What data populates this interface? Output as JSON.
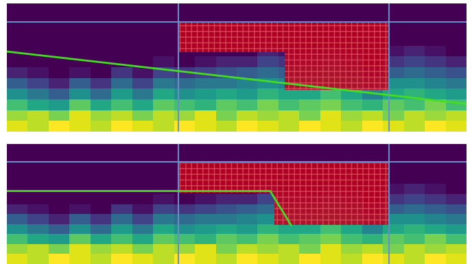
{
  "chart_data": [
    {
      "type": "heatmap",
      "tick_labels": false,
      "xlim": [
        0,
        22
      ],
      "ylim": [
        0,
        12
      ],
      "xticks": [],
      "yticks": [],
      "color_range": [
        0,
        1
      ],
      "cells": [
        [
          0.95,
          0.9,
          1,
          0.95,
          0.9,
          1,
          0.95,
          0.9,
          1,
          0.95,
          0.9,
          1,
          0.95,
          0.9,
          1,
          0.95,
          0.9,
          1,
          0.95,
          0.9,
          1,
          0.95
        ],
        [
          0.85,
          0.9,
          0.8,
          0.95,
          0.85,
          0.9,
          0.8,
          0.9,
          0.85,
          0.95,
          0.8,
          0.9,
          0.85,
          0.9,
          0.8,
          0.95,
          0.85,
          0.9,
          0.8,
          0.9,
          0.85,
          0.9
        ],
        [
          0.7,
          0.6,
          0.55,
          0.75,
          0.6,
          0.7,
          0.6,
          0.75,
          0.7,
          0.65,
          0.75,
          0.7,
          0.8,
          0.7,
          0.75,
          0.8,
          0.7,
          0.65,
          0.75,
          0.7,
          0.8,
          0.7
        ],
        [
          0.5,
          0.4,
          0.3,
          0.5,
          0.35,
          0.55,
          0.4,
          0.6,
          0.5,
          0.55,
          0.6,
          0.55,
          0.65,
          0.6,
          0.6,
          0.7,
          0.6,
          0.45,
          0.6,
          0.65,
          0.6,
          0.55
        ],
        [
          0.3,
          0.2,
          0.1,
          0.3,
          0.15,
          0.35,
          0.2,
          0.4,
          0.35,
          0.4,
          0.4,
          0.45,
          0.5,
          0.45,
          0.45,
          0.55,
          0.45,
          0.3,
          0.5,
          0.5,
          0.45,
          0.4
        ],
        [
          0.1,
          0.05,
          0,
          0.05,
          0,
          0.15,
          0.05,
          0.2,
          0.15,
          0.2,
          0.25,
          0.3,
          0.35,
          0.3,
          0.3,
          0.4,
          0.3,
          0.1,
          0.3,
          0.35,
          0.3,
          0.25
        ],
        [
          0,
          0,
          0,
          0,
          0,
          0,
          0,
          0.05,
          0,
          0.05,
          0.1,
          0.1,
          0.2,
          0.15,
          0.15,
          0.25,
          0.15,
          0,
          0.15,
          0.2,
          0.15,
          0.1
        ],
        [
          0,
          0,
          0,
          0,
          0,
          0,
          0,
          0,
          0,
          0,
          0,
          0,
          0.1,
          0.05,
          0.05,
          0.1,
          0.05,
          0,
          0.05,
          0.1,
          0.05,
          0
        ],
        [
          0,
          0,
          0,
          0,
          0,
          0,
          0,
          0,
          0,
          0,
          0,
          0,
          0,
          0,
          0,
          0,
          0,
          0,
          0,
          0,
          0,
          0
        ],
        [
          0,
          0,
          0,
          0,
          0,
          0,
          0,
          0,
          0,
          0,
          0,
          0,
          0,
          0,
          0,
          0,
          0,
          0,
          0,
          0,
          0,
          0
        ],
        [
          0,
          0,
          0,
          0,
          0,
          0,
          0,
          0,
          0,
          0,
          0,
          0,
          0,
          0,
          0,
          0,
          0,
          0,
          0,
          0,
          0,
          0
        ],
        [
          0,
          0,
          0,
          0,
          0,
          0,
          0,
          0,
          0,
          0,
          0,
          0,
          0,
          0,
          0,
          0,
          0,
          0,
          0,
          0,
          0,
          0
        ]
      ],
      "vlines": [
        8.2,
        18.3
      ],
      "hlines": [
        10.25
      ],
      "lines_color": "#6a8cc7",
      "regions": [
        {
          "x": [
            8.2,
            13.3
          ],
          "y": [
            7.45,
            10.25
          ]
        },
        {
          "x": [
            13.3,
            18.3
          ],
          "y": [
            3.9,
            10.25
          ]
        }
      ],
      "regions_color": "#c0001a",
      "series": [
        {
          "x": [
            0,
            22
          ],
          "values": [
            7.5,
            2.6
          ],
          "color": "#44dd22"
        }
      ]
    },
    {
      "type": "heatmap",
      "tick_labels": false,
      "xlim": [
        0,
        22
      ],
      "ylim": [
        0,
        12
      ],
      "xticks": [],
      "yticks": [],
      "color_range": [
        0,
        1
      ],
      "cells": [
        [
          0.95,
          0.9,
          1,
          0.95,
          0.9,
          1,
          0.95,
          0.9,
          1,
          0.95,
          0.9,
          1,
          0.95,
          0.9,
          1,
          0.95,
          0.9,
          1,
          0.95,
          0.9,
          1,
          0.95
        ],
        [
          0.85,
          0.9,
          0.8,
          0.95,
          0.85,
          0.9,
          0.8,
          0.9,
          0.85,
          0.95,
          0.8,
          0.9,
          0.85,
          0.9,
          0.8,
          0.95,
          0.85,
          0.9,
          0.8,
          0.9,
          0.85,
          0.9
        ],
        [
          0.7,
          0.6,
          0.55,
          0.75,
          0.6,
          0.7,
          0.6,
          0.75,
          0.7,
          0.65,
          0.75,
          0.7,
          0.8,
          0.7,
          0.75,
          0.8,
          0.7,
          0.65,
          0.75,
          0.7,
          0.8,
          0.7
        ],
        [
          0.5,
          0.4,
          0.3,
          0.5,
          0.35,
          0.55,
          0.4,
          0.6,
          0.5,
          0.55,
          0.6,
          0.55,
          0.65,
          0.6,
          0.6,
          0.7,
          0.6,
          0.45,
          0.6,
          0.65,
          0.6,
          0.55
        ],
        [
          0.3,
          0.2,
          0.1,
          0.3,
          0.15,
          0.35,
          0.2,
          0.4,
          0.35,
          0.4,
          0.4,
          0.45,
          0.5,
          0.45,
          0.45,
          0.55,
          0.45,
          0.3,
          0.5,
          0.5,
          0.45,
          0.4
        ],
        [
          0.1,
          0.05,
          0,
          0.05,
          0,
          0.15,
          0.05,
          0.2,
          0.15,
          0.2,
          0.25,
          0.3,
          0.35,
          0.3,
          0.3,
          0.4,
          0.3,
          0.1,
          0.3,
          0.35,
          0.3,
          0.25
        ],
        [
          0,
          0,
          0,
          0,
          0,
          0,
          0,
          0.05,
          0,
          0.05,
          0.1,
          0.1,
          0.2,
          0.15,
          0.15,
          0.25,
          0.15,
          0,
          0.15,
          0.2,
          0.15,
          0.1
        ],
        [
          0,
          0,
          0,
          0,
          0,
          0,
          0,
          0,
          0,
          0,
          0,
          0,
          0.1,
          0.05,
          0.05,
          0.1,
          0.05,
          0,
          0.05,
          0.1,
          0.05,
          0
        ],
        [
          0,
          0,
          0,
          0,
          0,
          0,
          0,
          0,
          0,
          0,
          0,
          0,
          0,
          0,
          0,
          0,
          0,
          0,
          0,
          0,
          0,
          0
        ],
        [
          0,
          0,
          0,
          0,
          0,
          0,
          0,
          0,
          0,
          0,
          0,
          0,
          0,
          0,
          0,
          0,
          0,
          0,
          0,
          0,
          0,
          0
        ],
        [
          0,
          0,
          0,
          0,
          0,
          0,
          0,
          0,
          0,
          0,
          0,
          0,
          0,
          0,
          0,
          0,
          0,
          0,
          0,
          0,
          0,
          0
        ],
        [
          0,
          0,
          0,
          0,
          0,
          0,
          0,
          0,
          0,
          0,
          0,
          0,
          0,
          0,
          0,
          0,
          0,
          0,
          0,
          0,
          0,
          0
        ]
      ],
      "vlines": [
        8.2,
        18.3
      ],
      "hlines": [
        10.25
      ],
      "lines_color": "#6a8cc7",
      "regions": [
        {
          "x": [
            8.2,
            12.8
          ],
          "y": [
            7.1,
            10.25
          ]
        },
        {
          "x": [
            12.8,
            18.3
          ],
          "y": [
            3.9,
            10.25
          ]
        }
      ],
      "regions_color": "#c0001a",
      "series": [
        {
          "x": [
            0,
            12.6,
            13.6
          ],
          "values": [
            7.3,
            7.3,
            3.9
          ],
          "color": "#44dd22"
        }
      ]
    }
  ]
}
